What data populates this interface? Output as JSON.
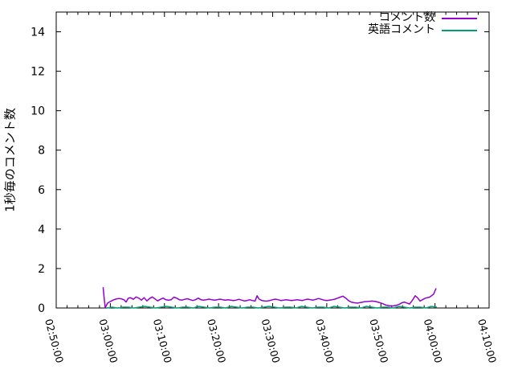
{
  "background_color": "#ffffff",
  "chart_data": {
    "type": "line",
    "title": "",
    "xlabel": "",
    "ylabel": "1秒毎のコメント数",
    "grid": false,
    "legend_position": "top-right",
    "x_axis": {
      "range_seconds": [
        0,
        4800
      ],
      "tick_labels": [
        "02:50:00",
        "03:00:00",
        "03:10:00",
        "03:20:00",
        "03:30:00",
        "03:40:00",
        "03:50:00",
        "04:00:00",
        "04:10:00"
      ],
      "tick_offsets_seconds": [
        0,
        600,
        1200,
        1800,
        2400,
        3000,
        3600,
        4200,
        4800
      ],
      "minor_tick_interval_seconds": 120
    },
    "y_axis": {
      "range": [
        0,
        15
      ],
      "ticks": [
        0,
        2,
        4,
        6,
        8,
        10,
        12,
        14
      ]
    },
    "series": [
      {
        "name": "コメント数",
        "color": "#9400d3",
        "points": [
          [
            520,
            1.05
          ],
          [
            532,
            0.5
          ],
          [
            543,
            0.02
          ],
          [
            570,
            0.25
          ],
          [
            600,
            0.33
          ],
          [
            630,
            0.4
          ],
          [
            660,
            0.45
          ],
          [
            690,
            0.48
          ],
          [
            720,
            0.47
          ],
          [
            750,
            0.42
          ],
          [
            775,
            0.3
          ],
          [
            800,
            0.5
          ],
          [
            825,
            0.52
          ],
          [
            855,
            0.44
          ],
          [
            885,
            0.56
          ],
          [
            915,
            0.5
          ],
          [
            945,
            0.4
          ],
          [
            975,
            0.52
          ],
          [
            1005,
            0.36
          ],
          [
            1035,
            0.48
          ],
          [
            1065,
            0.56
          ],
          [
            1095,
            0.46
          ],
          [
            1125,
            0.36
          ],
          [
            1155,
            0.44
          ],
          [
            1185,
            0.5
          ],
          [
            1215,
            0.42
          ],
          [
            1245,
            0.4
          ],
          [
            1275,
            0.42
          ],
          [
            1305,
            0.55
          ],
          [
            1335,
            0.5
          ],
          [
            1365,
            0.42
          ],
          [
            1395,
            0.4
          ],
          [
            1425,
            0.44
          ],
          [
            1455,
            0.47
          ],
          [
            1485,
            0.42
          ],
          [
            1515,
            0.38
          ],
          [
            1545,
            0.42
          ],
          [
            1575,
            0.5
          ],
          [
            1605,
            0.42
          ],
          [
            1635,
            0.4
          ],
          [
            1665,
            0.42
          ],
          [
            1695,
            0.45
          ],
          [
            1725,
            0.42
          ],
          [
            1755,
            0.4
          ],
          [
            1785,
            0.42
          ],
          [
            1815,
            0.45
          ],
          [
            1845,
            0.42
          ],
          [
            1875,
            0.4
          ],
          [
            1905,
            0.42
          ],
          [
            1935,
            0.4
          ],
          [
            1965,
            0.38
          ],
          [
            1995,
            0.4
          ],
          [
            2025,
            0.44
          ],
          [
            2055,
            0.4
          ],
          [
            2085,
            0.36
          ],
          [
            2115,
            0.38
          ],
          [
            2145,
            0.42
          ],
          [
            2175,
            0.38
          ],
          [
            2205,
            0.35
          ],
          [
            2227,
            0.62
          ],
          [
            2250,
            0.45
          ],
          [
            2280,
            0.38
          ],
          [
            2310,
            0.36
          ],
          [
            2340,
            0.35
          ],
          [
            2370,
            0.38
          ],
          [
            2400,
            0.42
          ],
          [
            2430,
            0.45
          ],
          [
            2460,
            0.42
          ],
          [
            2490,
            0.38
          ],
          [
            2520,
            0.4
          ],
          [
            2550,
            0.42
          ],
          [
            2580,
            0.4
          ],
          [
            2610,
            0.38
          ],
          [
            2640,
            0.4
          ],
          [
            2670,
            0.42
          ],
          [
            2700,
            0.4
          ],
          [
            2730,
            0.38
          ],
          [
            2760,
            0.42
          ],
          [
            2790,
            0.45
          ],
          [
            2820,
            0.42
          ],
          [
            2850,
            0.4
          ],
          [
            2880,
            0.44
          ],
          [
            2910,
            0.48
          ],
          [
            2940,
            0.44
          ],
          [
            2970,
            0.4
          ],
          [
            3000,
            0.38
          ],
          [
            3030,
            0.4
          ],
          [
            3060,
            0.42
          ],
          [
            3090,
            0.45
          ],
          [
            3120,
            0.5
          ],
          [
            3150,
            0.55
          ],
          [
            3179,
            0.6
          ],
          [
            3210,
            0.5
          ],
          [
            3240,
            0.38
          ],
          [
            3270,
            0.3
          ],
          [
            3300,
            0.27
          ],
          [
            3340,
            0.25
          ],
          [
            3380,
            0.28
          ],
          [
            3420,
            0.32
          ],
          [
            3460,
            0.33
          ],
          [
            3500,
            0.35
          ],
          [
            3540,
            0.33
          ],
          [
            3580,
            0.28
          ],
          [
            3620,
            0.22
          ],
          [
            3651,
            0.15
          ],
          [
            3690,
            0.12
          ],
          [
            3730,
            0.1
          ],
          [
            3770,
            0.13
          ],
          [
            3810,
            0.2
          ],
          [
            3829,
            0.26
          ],
          [
            3860,
            0.3
          ],
          [
            3890,
            0.25
          ],
          [
            3918,
            0.2
          ],
          [
            3950,
            0.4
          ],
          [
            3981,
            0.62
          ],
          [
            4010,
            0.5
          ],
          [
            4034,
            0.35
          ],
          [
            4060,
            0.42
          ],
          [
            4096,
            0.5
          ],
          [
            4140,
            0.55
          ],
          [
            4185,
            0.7
          ],
          [
            4212,
            1.0
          ]
        ]
      },
      {
        "name": "英語コメント",
        "color": "#009e73",
        "points": [
          [
            560,
            0
          ],
          [
            620,
            0.04
          ],
          [
            680,
            0
          ],
          [
            740,
            0.04
          ],
          [
            800,
            0.04
          ],
          [
            860,
            0
          ],
          [
            920,
            0.04
          ],
          [
            980,
            0.08
          ],
          [
            1040,
            0.04
          ],
          [
            1100,
            0
          ],
          [
            1160,
            0.04
          ],
          [
            1220,
            0.08
          ],
          [
            1280,
            0.04
          ],
          [
            1340,
            0
          ],
          [
            1400,
            0.04
          ],
          [
            1460,
            0.04
          ],
          [
            1520,
            0
          ],
          [
            1580,
            0.08
          ],
          [
            1640,
            0.04
          ],
          [
            1700,
            0
          ],
          [
            1760,
            0.04
          ],
          [
            1820,
            0.04
          ],
          [
            1880,
            0
          ],
          [
            1940,
            0.08
          ],
          [
            2000,
            0.04
          ],
          [
            2060,
            0
          ],
          [
            2120,
            0.04
          ],
          [
            2180,
            0.04
          ],
          [
            2240,
            0
          ],
          [
            2300,
            0.04
          ],
          [
            2360,
            0.08
          ],
          [
            2420,
            0.04
          ],
          [
            2480,
            0
          ],
          [
            2540,
            0.04
          ],
          [
            2600,
            0.04
          ],
          [
            2660,
            0
          ],
          [
            2720,
            0.08
          ],
          [
            2780,
            0.04
          ],
          [
            2840,
            0
          ],
          [
            2900,
            0.04
          ],
          [
            2960,
            0.04
          ],
          [
            3020,
            0
          ],
          [
            3080,
            0.08
          ],
          [
            3140,
            0.04
          ],
          [
            3200,
            0
          ],
          [
            3260,
            0.04
          ],
          [
            3320,
            0.04
          ],
          [
            3380,
            0
          ],
          [
            3440,
            0.08
          ],
          [
            3500,
            0.04
          ],
          [
            3560,
            0
          ],
          [
            3620,
            0.04
          ],
          [
            3680,
            0.04
          ],
          [
            3740,
            0
          ],
          [
            3800,
            0.08
          ],
          [
            3860,
            0.04
          ],
          [
            3920,
            0
          ],
          [
            3980,
            0.04
          ],
          [
            4040,
            0.04
          ],
          [
            4100,
            0
          ],
          [
            4160,
            0.08
          ],
          [
            4220,
            0.04
          ]
        ]
      }
    ]
  }
}
